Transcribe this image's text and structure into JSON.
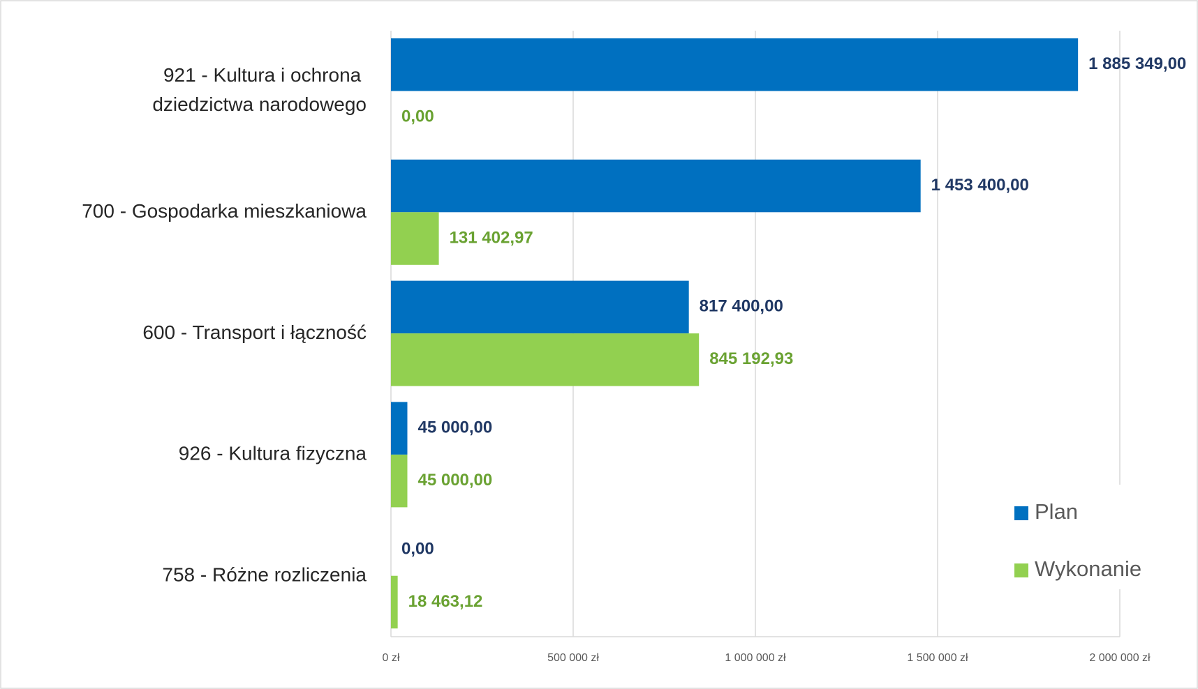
{
  "chart_data": {
    "type": "barh",
    "categories": [
      "921 - Kultura i ochrona dziedzictwa narodowego",
      "700 - Gospodarka mieszkaniowa",
      "600 - Transport i łączność",
      "926 - Kultura fizyczna",
      "758 - Różne rozliczenia"
    ],
    "series": [
      {
        "name": "Plan",
        "color": "#0070c0",
        "label_color": "#203864",
        "values": [
          1885349,
          1453400,
          817400,
          45000,
          0
        ],
        "value_labels": [
          "1 885 349,00",
          "1 453 400,00",
          "817 400,00",
          "45 000,00",
          "0,00"
        ]
      },
      {
        "name": "Wykonanie",
        "color": "#92d050",
        "label_color": "#6aa232",
        "values": [
          0,
          131402.97,
          845192.93,
          45000,
          18463.12
        ],
        "value_labels": [
          "0,00",
          "131 402,97",
          "845 192,93",
          "45 000,00",
          "18 463,12"
        ]
      }
    ],
    "xlim": [
      0,
      2000000
    ],
    "xticks": [
      {
        "value": 0,
        "label": "0 zł"
      },
      {
        "value": 500000,
        "label": "500 000 zł"
      },
      {
        "value": 1000000,
        "label": "1 000 000 zł"
      },
      {
        "value": 1500000,
        "label": "1 500 000 zł"
      },
      {
        "value": 2000000,
        "label": "2 000 000 zł"
      }
    ],
    "grid": true,
    "legend": "lower right"
  }
}
